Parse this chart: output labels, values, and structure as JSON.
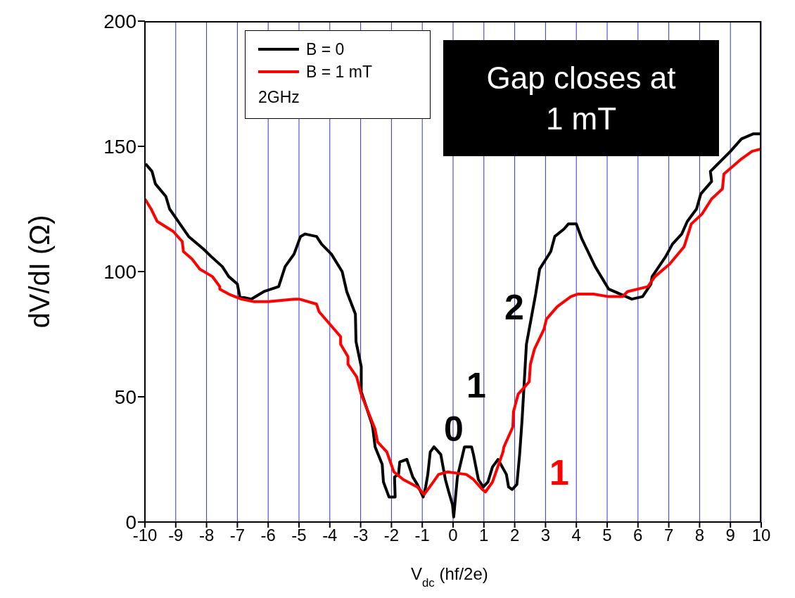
{
  "chart_data": {
    "type": "line",
    "xlabel": "V$_{dc}$ (hf/2e)",
    "ylabel": "dV/dI (Ω)",
    "xlim": [
      -10,
      10
    ],
    "xticks": [
      -10,
      -9,
      -8,
      -7,
      -6,
      -5,
      -4,
      -3,
      -2,
      -1,
      0,
      1,
      2,
      3,
      4,
      5,
      6,
      7,
      8,
      9,
      10
    ],
    "ylim": [
      0,
      200
    ],
    "yticks": [
      0,
      50,
      100,
      150,
      200
    ],
    "grid": "x",
    "legend": "top left",
    "line_style": "solid",
    "marker": "none",
    "series": [
      {
        "name": "B = 0",
        "color": "#000000",
        "x": [
          -9.98,
          -9.77,
          -9.66,
          -9.32,
          -9.2,
          -8.58,
          -8.1,
          -7.85,
          -7.49,
          -7.28,
          -7.0,
          -6.92,
          -6.55,
          -6.14,
          -5.66,
          -5.45,
          -5.16,
          -4.95,
          -4.8,
          -4.43,
          -4.27,
          -3.95,
          -3.6,
          -3.45,
          -3.17,
          -3.15,
          -2.98,
          -2.98,
          -2.63,
          -2.6,
          -2.53,
          -2.3,
          -2.26,
          -2.08,
          -1.88,
          -1.9,
          -1.77,
          -1.73,
          -1.5,
          -1.31,
          -1.16,
          -0.97,
          -0.89,
          -0.82,
          -0.74,
          -0.62,
          -0.4,
          -0.25,
          -0.14,
          -0.02,
          0.02,
          0.05,
          0.14,
          0.37,
          0.6,
          0.66,
          0.82,
          0.98,
          1.13,
          1.28,
          1.46,
          1.73,
          1.8,
          1.92,
          2.07,
          2.16,
          2.24,
          2.38,
          2.68,
          2.81,
          3.17,
          3.3,
          3.6,
          3.74,
          4.0,
          4.18,
          4.61,
          5.05,
          5.8,
          6.15,
          6.42,
          6.46,
          6.9,
          7.12,
          7.42,
          7.6,
          7.9,
          8.04,
          8.39,
          8.35,
          9.0,
          9.36,
          9.75,
          10.0
        ],
        "values": [
          143,
          140,
          135,
          130,
          125,
          114,
          109,
          106,
          102,
          98,
          95,
          90,
          89,
          92,
          94,
          102,
          107,
          114,
          115,
          114,
          111,
          107,
          100,
          92,
          83,
          72,
          62,
          52,
          39,
          37,
          30,
          23,
          16,
          10,
          10,
          18,
          19,
          24,
          25,
          18,
          15,
          10,
          14,
          19,
          28,
          30,
          27,
          17,
          12,
          7,
          2,
          6,
          18,
          30,
          30,
          27,
          17,
          14,
          16,
          22,
          25,
          19,
          14,
          13,
          15,
          27,
          41,
          71,
          91,
          101,
          108,
          114,
          117,
          119,
          119,
          113,
          102,
          93,
          89,
          90,
          95,
          98,
          106,
          111,
          115,
          120,
          125,
          131,
          136,
          140,
          148,
          153,
          155,
          155
        ]
      },
      {
        "name": "B = 1 mT",
        "color": "#ff0000",
        "x": [
          -10,
          -9.8,
          -9.6,
          -9.08,
          -8.79,
          -8.75,
          -8.47,
          -8.22,
          -7.81,
          -7.69,
          -7.57,
          -7.57,
          -7.28,
          -6.87,
          -6.46,
          -6.0,
          -5.16,
          -4.99,
          -4.43,
          -4.35,
          -3.65,
          -3.65,
          -3.41,
          -3.41,
          -3.13,
          -2.98,
          -2.53,
          -2.45,
          -2.15,
          -1.92,
          -1.62,
          -1.16,
          -0.94,
          -0.7,
          -0.47,
          -0.18,
          0.43,
          0.66,
          0.95,
          1.05,
          1.28,
          1.62,
          1.65,
          1.94,
          1.96,
          2.11,
          2.47,
          2.51,
          2.64,
          2.95,
          3.03,
          3.38,
          3.82,
          4.04,
          4.55,
          5.05,
          5.5,
          5.66,
          6.32,
          6.55,
          7.03,
          7.5,
          7.73,
          8.08,
          8.39,
          8.74,
          8.79,
          9.36,
          9.7,
          10.0
        ],
        "values": [
          129,
          125,
          120,
          116,
          112,
          108,
          105,
          101,
          98,
          96,
          94,
          93,
          91,
          89,
          88,
          88,
          89,
          89,
          87,
          84,
          74,
          71,
          66,
          63,
          58,
          51,
          37,
          32,
          28,
          20,
          17,
          14,
          11,
          15,
          19,
          20,
          19,
          17,
          13,
          12,
          16,
          28,
          30,
          38,
          44,
          51,
          56,
          63,
          69,
          77,
          81,
          86,
          90,
          91,
          91,
          90,
          90,
          92,
          94,
          98,
          103,
          110,
          119,
          123,
          129,
          133,
          139,
          145,
          148,
          149
        ]
      }
    ],
    "annotations": [
      "2GHz",
      "Gap closes at 1 mT",
      "0",
      "1",
      "2",
      "1"
    ]
  }
}
